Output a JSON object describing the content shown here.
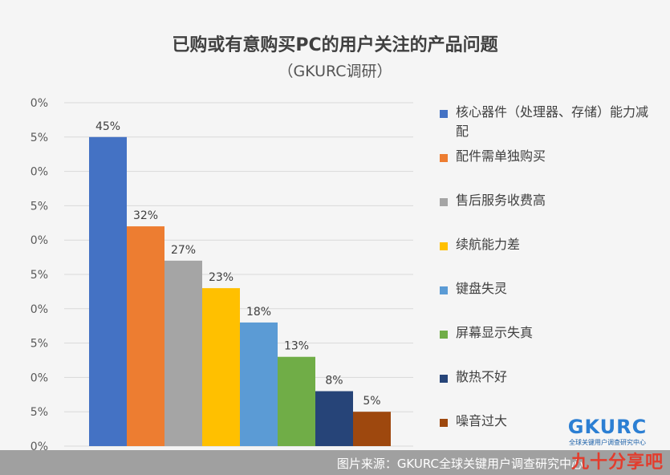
{
  "title": "已购或有意购买PC的用户关注的产品问题",
  "subtitle": "（GKURC调研）",
  "chart_data": {
    "type": "bar",
    "categories": [
      "核心器件（处理器、存储）能力减配",
      "配件需单独购买",
      "售后服务收费高",
      "续航能力差",
      "键盘失灵",
      "屏幕显示失真",
      "散热不好",
      "噪音过大"
    ],
    "values": [
      45,
      32,
      27,
      23,
      18,
      13,
      8,
      5
    ],
    "value_labels": [
      "45%",
      "32%",
      "27%",
      "23%",
      "18%",
      "13%",
      "8%",
      "5%"
    ],
    "colors": [
      "#4472c4",
      "#ed7d31",
      "#a5a5a5",
      "#ffc000",
      "#5b9bd5",
      "#70ad47",
      "#264478",
      "#9e480e"
    ],
    "y_tick_labels": [
      "0%",
      "5%",
      "0%",
      "5%",
      "0%",
      "5%",
      "0%",
      "5%",
      "0%",
      "5%",
      "0%"
    ],
    "ylim": [
      0,
      50
    ],
    "grid": true,
    "legend": "right"
  },
  "legend": [
    {
      "label": "核心器件（处理器、存储）能力减配",
      "color": "#4472c4"
    },
    {
      "label": "配件需单独购买",
      "color": "#ed7d31"
    },
    {
      "label": "售后服务收费高",
      "color": "#a5a5a5"
    },
    {
      "label": "续航能力差",
      "color": "#ffc000"
    },
    {
      "label": "键盘失灵",
      "color": "#5b9bd5"
    },
    {
      "label": "屏幕显示失真",
      "color": "#70ad47"
    },
    {
      "label": "散热不好",
      "color": "#264478"
    },
    {
      "label": "噪音过大",
      "color": "#9e480e"
    }
  ],
  "logo": {
    "name": "GKURC",
    "tagline": "全球关键用户调查研究中心"
  },
  "footer": {
    "source": "图片来源：GKURC全球关键用户调查研究中心"
  },
  "watermark": "九十分享吧"
}
